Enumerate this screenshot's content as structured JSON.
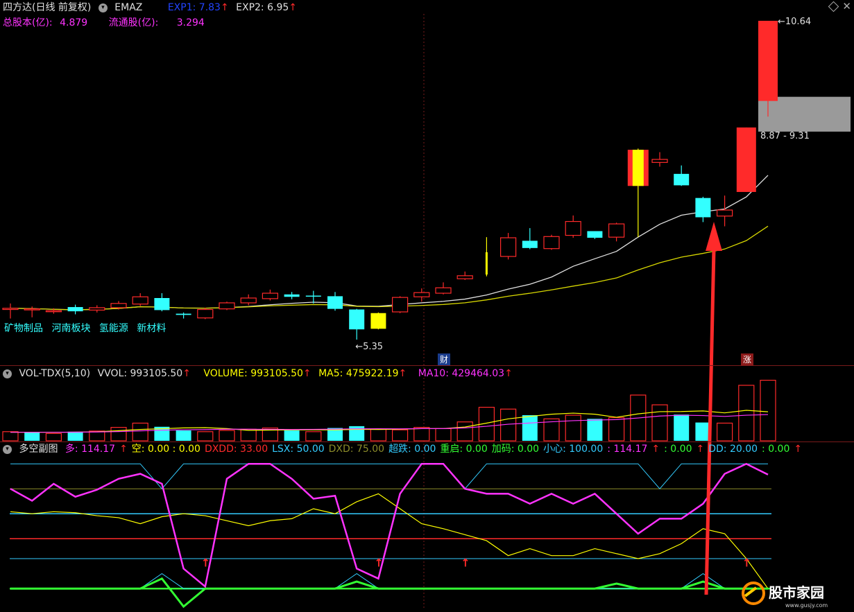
{
  "main": {
    "title": "四方达(日线 前复权)",
    "indicator": "EMAZ",
    "exp1_label": "EXP1: 7.83",
    "exp2_label": "EXP2: 6.95",
    "arrow": "↑",
    "total_shares_label": "总股本(亿):",
    "total_shares": "4.879",
    "float_shares_label": "流通股(亿):",
    "float_shares": "3.294",
    "concepts": [
      "矿物制品",
      "河南板块",
      "氢能源",
      "新材料"
    ],
    "high_label": "10.64",
    "low_label": "5.35",
    "range_label": "8.87 - 9.31",
    "tag_finance": "财",
    "tag_limit": "涨"
  },
  "volume": {
    "name": "VOL-TDX(5,10)",
    "vvol_label": "VVOL: 993105.50",
    "volume_label": "VOLUME: 993105.50",
    "ma5_label": "MA5: 475922.19",
    "ma10_label": "MA10: 429464.03",
    "arrow": "↑"
  },
  "sub": {
    "name": "多空副图",
    "items": [
      {
        "label": "多: 114.17",
        "color": "#ff33ff"
      },
      {
        "label": "空: 0.00 : 0.00",
        "color": "#ffff00"
      },
      {
        "label": "DXDD: 33.00",
        "color": "#ff2a2a"
      },
      {
        "label": "LSX: 50.00",
        "color": "#33ccff"
      },
      {
        "label": "DXD: 75.00",
        "color": "#8c8c2a"
      },
      {
        "label": "超跌: 0.00",
        "color": "#33ccff"
      },
      {
        "label": "重启: 0.00",
        "color": "#33ff33"
      },
      {
        "label": "加码: 0.00",
        "color": "#33ff33"
      },
      {
        "label": "小心: 100.00",
        "color": "#33ccff"
      },
      {
        "label": ": 114.17",
        "color": "#ff33ff"
      },
      {
        "label": ": 0.00",
        "color": "#33ff33"
      },
      {
        "label": "DD: 20.00",
        "color": "#33ccff"
      },
      {
        "label": ": 0.00",
        "color": "#33ff33"
      }
    ]
  },
  "watermark": {
    "text": "股市家园",
    "url": "www.gusjy.com"
  },
  "colors": {
    "up": "#ff2a2a",
    "down": "#33ffff",
    "limit": "#ffff00",
    "ma_white": "#e0e0e0",
    "ma_yellow": "#d8d800"
  },
  "candles": [
    {
      "o": 5.85,
      "c": 5.87,
      "h": 5.95,
      "l": 5.7
    },
    {
      "o": 5.86,
      "c": 5.86,
      "h": 5.9,
      "l": 5.72
    },
    {
      "o": 5.83,
      "c": 5.83,
      "h": 5.87,
      "l": 5.78
    },
    {
      "o": 5.89,
      "c": 5.82,
      "h": 5.93,
      "l": 5.77
    },
    {
      "o": 5.84,
      "c": 5.88,
      "h": 5.92,
      "l": 5.8
    },
    {
      "o": 5.88,
      "c": 5.95,
      "h": 5.99,
      "l": 5.85
    },
    {
      "o": 5.94,
      "c": 6.06,
      "h": 6.12,
      "l": 5.91
    },
    {
      "o": 6.04,
      "c": 5.84,
      "h": 6.12,
      "l": 5.82
    },
    {
      "o": 5.78,
      "c": 5.76,
      "h": 5.8,
      "l": 5.7
    },
    {
      "o": 5.71,
      "c": 5.85,
      "h": 5.88,
      "l": 5.69
    },
    {
      "o": 5.86,
      "c": 5.96,
      "h": 5.98,
      "l": 5.84
    },
    {
      "o": 5.96,
      "c": 6.04,
      "h": 6.1,
      "l": 5.92
    },
    {
      "o": 6.03,
      "c": 6.12,
      "h": 6.18,
      "l": 6.0
    },
    {
      "o": 6.1,
      "c": 6.06,
      "h": 6.14,
      "l": 6.02
    },
    {
      "o": 6.08,
      "c": 6.07,
      "h": 6.16,
      "l": 5.95
    },
    {
      "o": 6.07,
      "c": 5.86,
      "h": 6.14,
      "l": 5.83
    },
    {
      "o": 5.85,
      "c": 5.52,
      "h": 5.86,
      "l": 5.35
    },
    {
      "o": 5.53,
      "c": 5.79,
      "h": 5.8,
      "l": 5.52
    },
    {
      "o": 5.81,
      "c": 6.05,
      "h": 6.07,
      "l": 5.79
    },
    {
      "o": 6.06,
      "c": 6.13,
      "h": 6.2,
      "l": 5.98
    },
    {
      "o": 6.12,
      "c": 6.21,
      "h": 6.3,
      "l": 6.1
    },
    {
      "o": 6.36,
      "c": 6.41,
      "h": 6.48,
      "l": 6.34
    },
    {
      "o": 6.43,
      "c": 6.8,
      "h": 7.05,
      "l": 6.4
    },
    {
      "o": 6.73,
      "c": 7.04,
      "h": 7.12,
      "l": 6.68
    },
    {
      "o": 6.99,
      "c": 6.87,
      "h": 7.2,
      "l": 6.85
    },
    {
      "o": 6.86,
      "c": 7.06,
      "h": 7.09,
      "l": 6.84
    },
    {
      "o": 7.08,
      "c": 7.31,
      "h": 7.41,
      "l": 7.04
    },
    {
      "o": 7.15,
      "c": 7.04,
      "h": 7.15,
      "l": 7.02
    },
    {
      "o": 7.05,
      "c": 7.27,
      "h": 7.29,
      "l": 6.98
    },
    {
      "o": 7.9,
      "c": 8.5,
      "h": 8.52,
      "l": 7.05
    },
    {
      "o": 8.29,
      "c": 8.34,
      "h": 8.46,
      "l": 8.22
    },
    {
      "o": 8.1,
      "c": 7.91,
      "h": 8.24,
      "l": 7.9
    },
    {
      "o": 7.7,
      "c": 7.38,
      "h": 7.72,
      "l": 7.3
    },
    {
      "o": 7.4,
      "c": 7.5,
      "h": 7.74,
      "l": 7.23
    },
    {
      "o": 7.8,
      "c": 8.87,
      "h": 8.87,
      "l": 7.8
    },
    {
      "o": 9.31,
      "c": 10.64,
      "h": 10.64,
      "l": 9.05
    }
  ],
  "volumes": [
    {
      "v": 150000,
      "up": true
    },
    {
      "v": 140000,
      "up": false
    },
    {
      "v": 120000,
      "up": true
    },
    {
      "v": 150000,
      "up": false
    },
    {
      "v": 160000,
      "up": true
    },
    {
      "v": 220000,
      "up": true
    },
    {
      "v": 290000,
      "up": true
    },
    {
      "v": 230000,
      "up": false
    },
    {
      "v": 170000,
      "up": false
    },
    {
      "v": 150000,
      "up": true
    },
    {
      "v": 170000,
      "up": true
    },
    {
      "v": 190000,
      "up": true
    },
    {
      "v": 210000,
      "up": true
    },
    {
      "v": 170000,
      "up": false
    },
    {
      "v": 150000,
      "up": true
    },
    {
      "v": 210000,
      "up": false
    },
    {
      "v": 240000,
      "up": false
    },
    {
      "v": 190000,
      "up": true
    },
    {
      "v": 180000,
      "up": true
    },
    {
      "v": 220000,
      "up": true
    },
    {
      "v": 200000,
      "up": true
    },
    {
      "v": 310000,
      "up": true
    },
    {
      "v": 550000,
      "up": true
    },
    {
      "v": 520000,
      "up": true
    },
    {
      "v": 420000,
      "up": false
    },
    {
      "v": 360000,
      "up": true
    },
    {
      "v": 420000,
      "up": true
    },
    {
      "v": 360000,
      "up": false
    },
    {
      "v": 380000,
      "up": true
    },
    {
      "v": 750000,
      "up": true
    },
    {
      "v": 590000,
      "up": true
    },
    {
      "v": 430000,
      "up": false
    },
    {
      "v": 300000,
      "up": false
    },
    {
      "v": 290000,
      "up": true
    },
    {
      "v": 910000,
      "up": true
    },
    {
      "v": 993105,
      "up": true
    }
  ],
  "ma5_vol": [
    140000,
    140000,
    140000,
    142000,
    148000,
    166000,
    186000,
    198000,
    212000,
    216000,
    200000,
    172000,
    176000,
    178000,
    180000,
    178000,
    188000,
    186000,
    190000,
    200000,
    200000,
    226000,
    290000,
    360000,
    400000,
    436000,
    454000,
    436000,
    386000,
    442000,
    478000,
    480000,
    490000,
    458000,
    500000,
    475922
  ],
  "ma10_vol": [
    140000,
    140000,
    140000,
    142000,
    145000,
    152000,
    163000,
    174000,
    181000,
    183000,
    190000,
    190000,
    188000,
    186000,
    188000,
    192000,
    196000,
    198000,
    196000,
    200000,
    200000,
    212000,
    238000,
    272000,
    292000,
    312000,
    330000,
    340000,
    348000,
    374000,
    406000,
    420000,
    414000,
    400000,
    420000,
    429464
  ],
  "sub_duo": [
    100,
    88,
    105,
    92,
    99,
    110,
    115,
    105,
    20,
    2,
    110,
    125,
    125,
    110,
    90,
    93,
    20,
    10,
    95,
    125,
    125,
    100,
    95,
    95,
    85,
    95,
    85,
    95,
    75,
    55,
    70,
    70,
    85,
    115,
    125,
    114.17
  ],
  "sub_kong": [
    77,
    75,
    77,
    76,
    73,
    71,
    65,
    72,
    75,
    73,
    68,
    63,
    68,
    70,
    80,
    75,
    87,
    95,
    80,
    65,
    60,
    54,
    48,
    33,
    40,
    33,
    33,
    40,
    35,
    30,
    35,
    45,
    60,
    55,
    30,
    0
  ],
  "sub_cyan_top": [
    125,
    125,
    125,
    125,
    125,
    125,
    125,
    100,
    125,
    125,
    125,
    125,
    125,
    125,
    125,
    125,
    125,
    125,
    125,
    125,
    125,
    100,
    125,
    125,
    125,
    125,
    125,
    125,
    125,
    125,
    100,
    125,
    125,
    125,
    125,
    125
  ],
  "sub_cyan_low": [
    0,
    0,
    0,
    0,
    0,
    0,
    0,
    15,
    0,
    0,
    0,
    0,
    0,
    0,
    0,
    0,
    15,
    0,
    0,
    0,
    0,
    0,
    0,
    0,
    0,
    0,
    0,
    0,
    0,
    0,
    0,
    0,
    15,
    0,
    0,
    0
  ],
  "sub_green": [
    0,
    0,
    0,
    0,
    0,
    0,
    0,
    10,
    -18,
    0,
    0,
    0,
    0,
    0,
    0,
    0,
    7,
    0,
    0,
    0,
    0,
    0,
    0,
    0,
    0,
    0,
    0,
    0,
    5,
    0,
    0,
    0,
    7,
    0,
    0,
    0
  ],
  "sub_arrows": [
    9,
    17,
    21,
    34
  ],
  "sub_levels": [
    {
      "v": 100,
      "color": "#8c8c2a"
    },
    {
      "v": 75,
      "color": "#33ccff"
    },
    {
      "v": 50,
      "color": "#ff2a2a"
    },
    {
      "v": 30,
      "color": "#33ccff"
    },
    {
      "v": 0,
      "color": "#33ff33"
    }
  ]
}
